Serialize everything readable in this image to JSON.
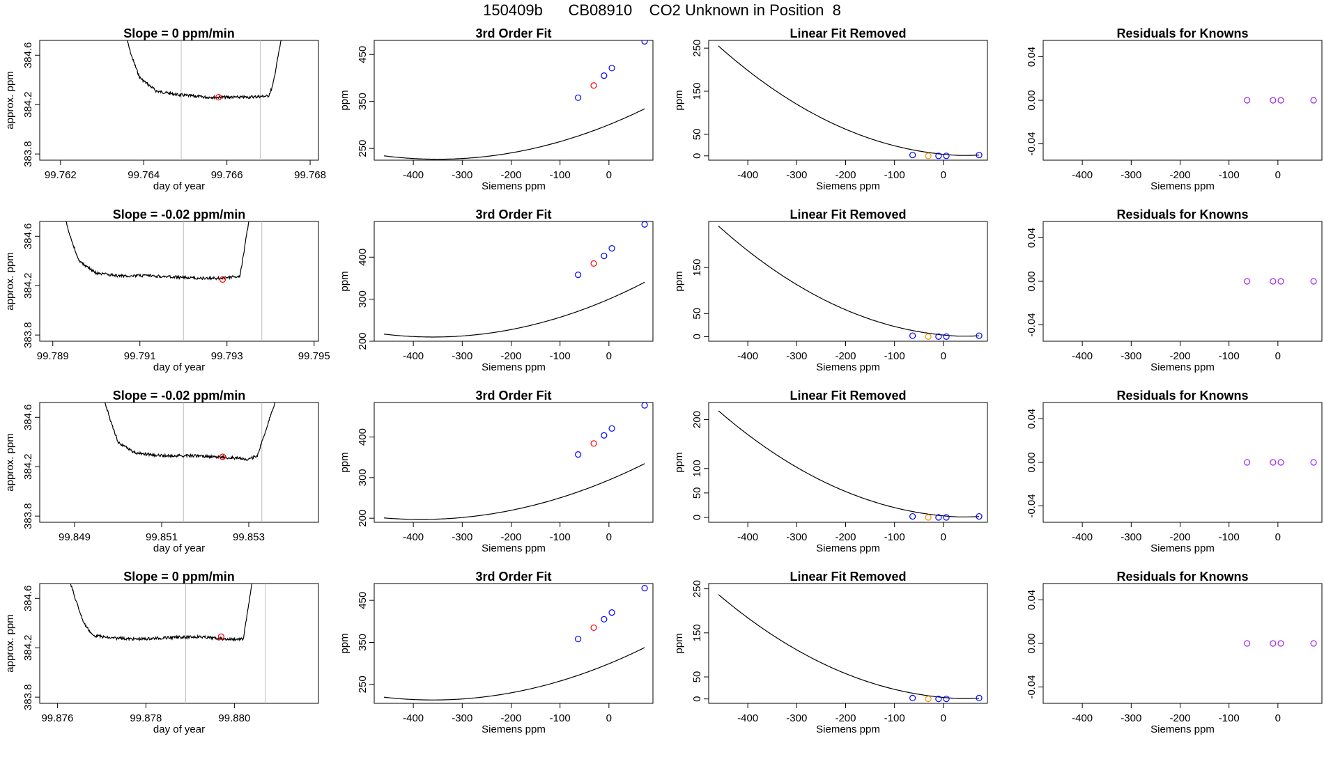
{
  "title": "150409b      CB08910    CO2 Unknown in Position  8",
  "colors": {
    "line": "#000000",
    "gray_line": "#bebebe",
    "unknown_marker": "#ff0000",
    "known_marker": "#0000ff",
    "removed_unknown": "#ff8c00",
    "residual_marker": "#a020f0"
  },
  "chart_data": [
    {
      "type": "line",
      "panel": "trace",
      "row": 1,
      "title": "Slope =  0  ppm/min",
      "xlabel": "day of year",
      "ylabel": "approx. ppm",
      "xlim": [
        99.7615,
        99.7682
      ],
      "ylim": [
        383.75,
        384.72
      ],
      "xticks": [
        99.762,
        99.764,
        99.766,
        99.768
      ],
      "xtick_labels": [
        "99.762",
        "99.764",
        "99.766",
        "99.768"
      ],
      "yticks": [
        383.8,
        384.2,
        384.6
      ],
      "ytick_labels": [
        "383.8",
        "384.2",
        "384.6"
      ],
      "trace_x": [
        99.7636,
        99.7637,
        99.7639,
        99.7643,
        99.7648,
        99.7655,
        99.766,
        99.7665,
        99.767,
        99.7671,
        99.7673
      ],
      "trace_y": [
        384.72,
        384.6,
        384.42,
        384.31,
        384.28,
        384.26,
        384.26,
        384.26,
        384.27,
        384.35,
        384.72
      ],
      "vlines": [
        99.7649,
        99.7668
      ],
      "marker": {
        "x": 99.7658,
        "y": 384.26
      }
    },
    {
      "type": "scatter+line",
      "panel": "fit",
      "row": 1,
      "title": "3rd Order Fit",
      "xlabel": "Siemens ppm",
      "ylabel": "ppm",
      "xlim": [
        -480,
        90
      ],
      "ylim": [
        225,
        480
      ],
      "xticks": [
        -400,
        -300,
        -200,
        -100,
        0
      ],
      "xtick_labels": [
        "-400",
        "-300",
        "-200",
        "-100",
        "0"
      ],
      "yticks": [
        250,
        350,
        450
      ],
      "ytick_labels": [
        "250",
        "350",
        "450"
      ],
      "curve": {
        "x0": -350,
        "y0": 227,
        "a": 0.0006
      },
      "known_points": {
        "x": [
          -63,
          -10,
          6,
          73
        ],
        "y": [
          358,
          405,
          421,
          478
        ]
      },
      "unknown_point": {
        "x": -31,
        "y": 384
      }
    },
    {
      "type": "scatter+line",
      "panel": "linear_removed",
      "row": 1,
      "title": "Linear Fit Removed",
      "xlabel": "Siemens ppm",
      "ylabel": "ppm",
      "xlim": [
        -480,
        90
      ],
      "ylim": [
        -10,
        268
      ],
      "xticks": [
        -400,
        -300,
        -200,
        -100,
        0
      ],
      "xtick_labels": [
        "-400",
        "-300",
        "-200",
        "-100",
        "0"
      ],
      "yticks": [
        0,
        50,
        150,
        250
      ],
      "ytick_labels": [
        "0",
        "50",
        "150",
        "250"
      ],
      "curve": {
        "x0": -460,
        "y0": 255,
        "p": 2.1
      },
      "known_points": {
        "x": [
          -63,
          -10,
          6,
          73
        ],
        "y": [
          2,
          0,
          0,
          2
        ]
      },
      "unknown_point": {
        "x": -31,
        "y": 0
      }
    },
    {
      "type": "scatter",
      "panel": "residuals",
      "row": 1,
      "title": "Residuals for Knowns",
      "xlabel": "Siemens ppm",
      "ylabel": "",
      "xlim": [
        -480,
        90
      ],
      "ylim": [
        -0.055,
        0.055
      ],
      "xticks": [
        -400,
        -300,
        -200,
        -100,
        0
      ],
      "xtick_labels": [
        "-400",
        "-300",
        "-200",
        "-100",
        "0"
      ],
      "yticks": [
        -0.04,
        0.0,
        0.04
      ],
      "ytick_labels": [
        "-0.04",
        "0.00",
        "0.04"
      ],
      "points": {
        "x": [
          -63,
          -10,
          6,
          73
        ],
        "y": [
          0,
          0,
          0,
          0
        ]
      }
    },
    {
      "type": "line",
      "panel": "trace",
      "row": 2,
      "title": "Slope =  -0.02  ppm/min",
      "xlabel": "day of year",
      "ylabel": "approx. ppm",
      "xlim": [
        99.7887,
        99.7951
      ],
      "ylim": [
        383.75,
        384.72
      ],
      "xticks": [
        99.789,
        99.791,
        99.793,
        99.795
      ],
      "xtick_labels": [
        "99.789",
        "99.791",
        "99.793",
        "99.795"
      ],
      "yticks": [
        383.8,
        384.2,
        384.6
      ],
      "ytick_labels": [
        "383.8",
        "384.2",
        "384.6"
      ],
      "trace_x": [
        99.7893,
        99.7894,
        99.7896,
        99.79,
        99.7905,
        99.7912,
        99.7918,
        99.7924,
        99.7929,
        99.7933,
        99.7935
      ],
      "trace_y": [
        384.72,
        384.6,
        384.4,
        384.3,
        384.28,
        384.28,
        384.27,
        384.26,
        384.26,
        384.28,
        384.72
      ],
      "vlines": [
        99.792,
        99.7938
      ],
      "marker": {
        "x": 99.7929,
        "y": 384.25
      }
    },
    {
      "type": "scatter+line",
      "panel": "fit",
      "row": 2,
      "title": "3rd Order Fit",
      "xlabel": "Siemens ppm",
      "ylabel": "ppm",
      "xlim": [
        -480,
        90
      ],
      "ylim": [
        200,
        485
      ],
      "xticks": [
        -400,
        -300,
        -200,
        -100,
        0
      ],
      "xtick_labels": [
        "-400",
        "-300",
        "-200",
        "-100",
        "0"
      ],
      "yticks": [
        200,
        300,
        400
      ],
      "ytick_labels": [
        "200",
        "300",
        "400"
      ],
      "curve": {
        "x0": -360,
        "y0": 210,
        "a": 0.000695
      },
      "known_points": {
        "x": [
          -63,
          -10,
          6,
          73
        ],
        "y": [
          358,
          403,
          421,
          478
        ]
      },
      "unknown_point": {
        "x": -31,
        "y": 385
      }
    },
    {
      "type": "scatter+line",
      "panel": "linear_removed",
      "row": 2,
      "title": "Linear Fit Removed",
      "xlabel": "Siemens ppm",
      "ylabel": "ppm",
      "xlim": [
        -480,
        90
      ],
      "ylim": [
        -10,
        250
      ],
      "xticks": [
        -400,
        -300,
        -200,
        -100,
        0
      ],
      "xtick_labels": [
        "-400",
        "-300",
        "-200",
        "-100",
        "0"
      ],
      "yticks": [
        0,
        50,
        150
      ],
      "ytick_labels": [
        "0",
        "50",
        "150"
      ],
      "curve": {
        "x0": -460,
        "y0": 240,
        "p": 2.1
      },
      "known_points": {
        "x": [
          -63,
          -10,
          6,
          73
        ],
        "y": [
          2,
          0,
          0,
          2
        ]
      },
      "unknown_point": {
        "x": -31,
        "y": 0
      }
    },
    {
      "type": "scatter",
      "panel": "residuals",
      "row": 2,
      "title": "Residuals for Knowns",
      "xlabel": "Siemens ppm",
      "ylabel": "",
      "xlim": [
        -480,
        90
      ],
      "ylim": [
        -0.055,
        0.055
      ],
      "xticks": [
        -400,
        -300,
        -200,
        -100,
        0
      ],
      "xtick_labels": [
        "-400",
        "-300",
        "-200",
        "-100",
        "0"
      ],
      "yticks": [
        -0.04,
        0.0,
        0.04
      ],
      "ytick_labels": [
        "-0.04",
        "0.00",
        "0.04"
      ],
      "points": {
        "x": [
          -63,
          -10,
          6,
          73
        ],
        "y": [
          0,
          0,
          0,
          0
        ]
      }
    },
    {
      "type": "line",
      "panel": "trace",
      "row": 3,
      "title": "Slope =  -0.02  ppm/min",
      "xlabel": "day of year",
      "ylabel": "approx. ppm",
      "xlim": [
        99.8482,
        99.8546
      ],
      "ylim": [
        383.75,
        384.72
      ],
      "xticks": [
        99.849,
        99.851,
        99.853
      ],
      "xtick_labels": [
        "99.849",
        "99.851",
        "99.853"
      ],
      "yticks": [
        383.8,
        384.2,
        384.6
      ],
      "ytick_labels": [
        "383.8",
        "384.2",
        "384.6"
      ],
      "trace_x": [
        99.8497,
        99.8498,
        99.85,
        99.8504,
        99.851,
        99.8517,
        99.8522,
        99.8527,
        99.853,
        99.8532,
        99.8536
      ],
      "trace_y": [
        384.72,
        384.6,
        384.4,
        384.31,
        384.29,
        384.29,
        384.28,
        384.27,
        384.26,
        384.29,
        384.72
      ],
      "vlines": [
        99.8515,
        99.8533
      ],
      "marker": {
        "x": 99.8524,
        "y": 384.28
      }
    },
    {
      "type": "scatter+line",
      "panel": "fit",
      "row": 3,
      "title": "3rd Order Fit",
      "xlabel": "Siemens ppm",
      "ylabel": "ppm",
      "xlim": [
        -480,
        90
      ],
      "ylim": [
        190,
        485
      ],
      "xticks": [
        -400,
        -300,
        -200,
        -100,
        0
      ],
      "xtick_labels": [
        "-400",
        "-300",
        "-200",
        "-100",
        "0"
      ],
      "yticks": [
        200,
        300,
        400
      ],
      "ytick_labels": [
        "200",
        "300",
        "400"
      ],
      "curve": {
        "x0": -385,
        "y0": 197,
        "a": 0.000655
      },
      "known_points": {
        "x": [
          -63,
          -10,
          6,
          73
        ],
        "y": [
          357,
          404,
          421,
          478
        ]
      },
      "unknown_point": {
        "x": -31,
        "y": 384
      }
    },
    {
      "type": "scatter+line",
      "panel": "linear_removed",
      "row": 3,
      "title": "Linear Fit Removed",
      "xlabel": "Siemens ppm",
      "ylabel": "ppm",
      "xlim": [
        -480,
        90
      ],
      "ylim": [
        -10,
        235
      ],
      "xticks": [
        -400,
        -300,
        -200,
        -100,
        0
      ],
      "xtick_labels": [
        "-400",
        "-300",
        "-200",
        "-100",
        "0"
      ],
      "yticks": [
        0,
        50,
        100,
        200
      ],
      "ytick_labels": [
        "0",
        "50",
        "100",
        "200"
      ],
      "curve": {
        "x0": -460,
        "y0": 218,
        "p": 2.1
      },
      "known_points": {
        "x": [
          -63,
          -10,
          6,
          73
        ],
        "y": [
          2,
          0,
          0,
          2
        ]
      },
      "unknown_point": {
        "x": -31,
        "y": 0
      }
    },
    {
      "type": "scatter",
      "panel": "residuals",
      "row": 3,
      "title": "Residuals for Knowns",
      "xlabel": "Siemens ppm",
      "ylabel": "",
      "xlim": [
        -480,
        90
      ],
      "ylim": [
        -0.055,
        0.055
      ],
      "xticks": [
        -400,
        -300,
        -200,
        -100,
        0
      ],
      "xtick_labels": [
        "-400",
        "-300",
        "-200",
        "-100",
        "0"
      ],
      "yticks": [
        -0.04,
        0.0,
        0.04
      ],
      "ytick_labels": [
        "-0.04",
        "0.00",
        "0.04"
      ],
      "points": {
        "x": [
          -63,
          -10,
          6,
          73
        ],
        "y": [
          0,
          0,
          0,
          0
        ]
      }
    },
    {
      "type": "line",
      "panel": "trace",
      "row": 4,
      "title": "Slope =  0  ppm/min",
      "xlabel": "day of year",
      "ylabel": "approx. ppm",
      "xlim": [
        99.8756,
        99.8819
      ],
      "ylim": [
        383.75,
        384.72
      ],
      "xticks": [
        99.876,
        99.878,
        99.88
      ],
      "xtick_labels": [
        "99.876",
        "99.878",
        "99.880"
      ],
      "yticks": [
        383.8,
        384.2,
        384.6
      ],
      "ytick_labels": [
        "383.8",
        "384.2",
        "384.6"
      ],
      "trace_x": [
        99.8763,
        99.8764,
        99.8766,
        99.8768,
        99.8772,
        99.8778,
        99.8784,
        99.8792,
        99.8798,
        99.8802,
        99.8804
      ],
      "trace_y": [
        384.72,
        384.6,
        384.4,
        384.3,
        384.28,
        384.27,
        384.28,
        384.29,
        384.27,
        384.27,
        384.72
      ],
      "vlines": [
        99.8789,
        99.8807
      ],
      "marker": {
        "x": 99.8797,
        "y": 384.29
      }
    },
    {
      "type": "scatter+line",
      "panel": "fit",
      "row": 4,
      "title": "3rd Order Fit",
      "xlabel": "Siemens ppm",
      "ylabel": "ppm",
      "xlim": [
        -480,
        90
      ],
      "ylim": [
        205,
        490
      ],
      "xticks": [
        -400,
        -300,
        -200,
        -100,
        0
      ],
      "xtick_labels": [
        "-400",
        "-300",
        "-200",
        "-100",
        "0"
      ],
      "yticks": [
        250,
        350,
        450
      ],
      "ytick_labels": [
        "250",
        "350",
        "450"
      ],
      "curve": {
        "x0": -360,
        "y0": 213,
        "a": 0.000665
      },
      "known_points": {
        "x": [
          -63,
          -10,
          6,
          73
        ],
        "y": [
          358,
          405,
          421,
          479
        ]
      },
      "unknown_point": {
        "x": -31,
        "y": 385
      }
    },
    {
      "type": "scatter+line",
      "panel": "linear_removed",
      "row": 4,
      "title": "Linear Fit Removed",
      "xlabel": "Siemens ppm",
      "ylabel": "ppm",
      "xlim": [
        -480,
        90
      ],
      "ylim": [
        -10,
        262
      ],
      "xticks": [
        -400,
        -300,
        -200,
        -100,
        0
      ],
      "xtick_labels": [
        "-400",
        "-300",
        "-200",
        "-100",
        "0"
      ],
      "yticks": [
        0,
        50,
        150,
        250
      ],
      "ytick_labels": [
        "0",
        "50",
        "150",
        "250"
      ],
      "curve": {
        "x0": -460,
        "y0": 237,
        "p": 2.1
      },
      "known_points": {
        "x": [
          -63,
          -10,
          6,
          73
        ],
        "y": [
          2,
          0,
          0,
          2
        ]
      },
      "unknown_point": {
        "x": -31,
        "y": 0
      }
    },
    {
      "type": "scatter",
      "panel": "residuals",
      "row": 4,
      "title": "Residuals for Knowns",
      "xlabel": "Siemens ppm",
      "ylabel": "",
      "xlim": [
        -480,
        90
      ],
      "ylim": [
        -0.055,
        0.055
      ],
      "xticks": [
        -400,
        -300,
        -200,
        -100,
        0
      ],
      "xtick_labels": [
        "-400",
        "-300",
        "-200",
        "-100",
        "0"
      ],
      "yticks": [
        -0.04,
        0.0,
        0.04
      ],
      "ytick_labels": [
        "-0.04",
        "0.00",
        "0.04"
      ],
      "points": {
        "x": [
          -63,
          -10,
          6,
          73
        ],
        "y": [
          0,
          0,
          0,
          0
        ]
      }
    }
  ]
}
